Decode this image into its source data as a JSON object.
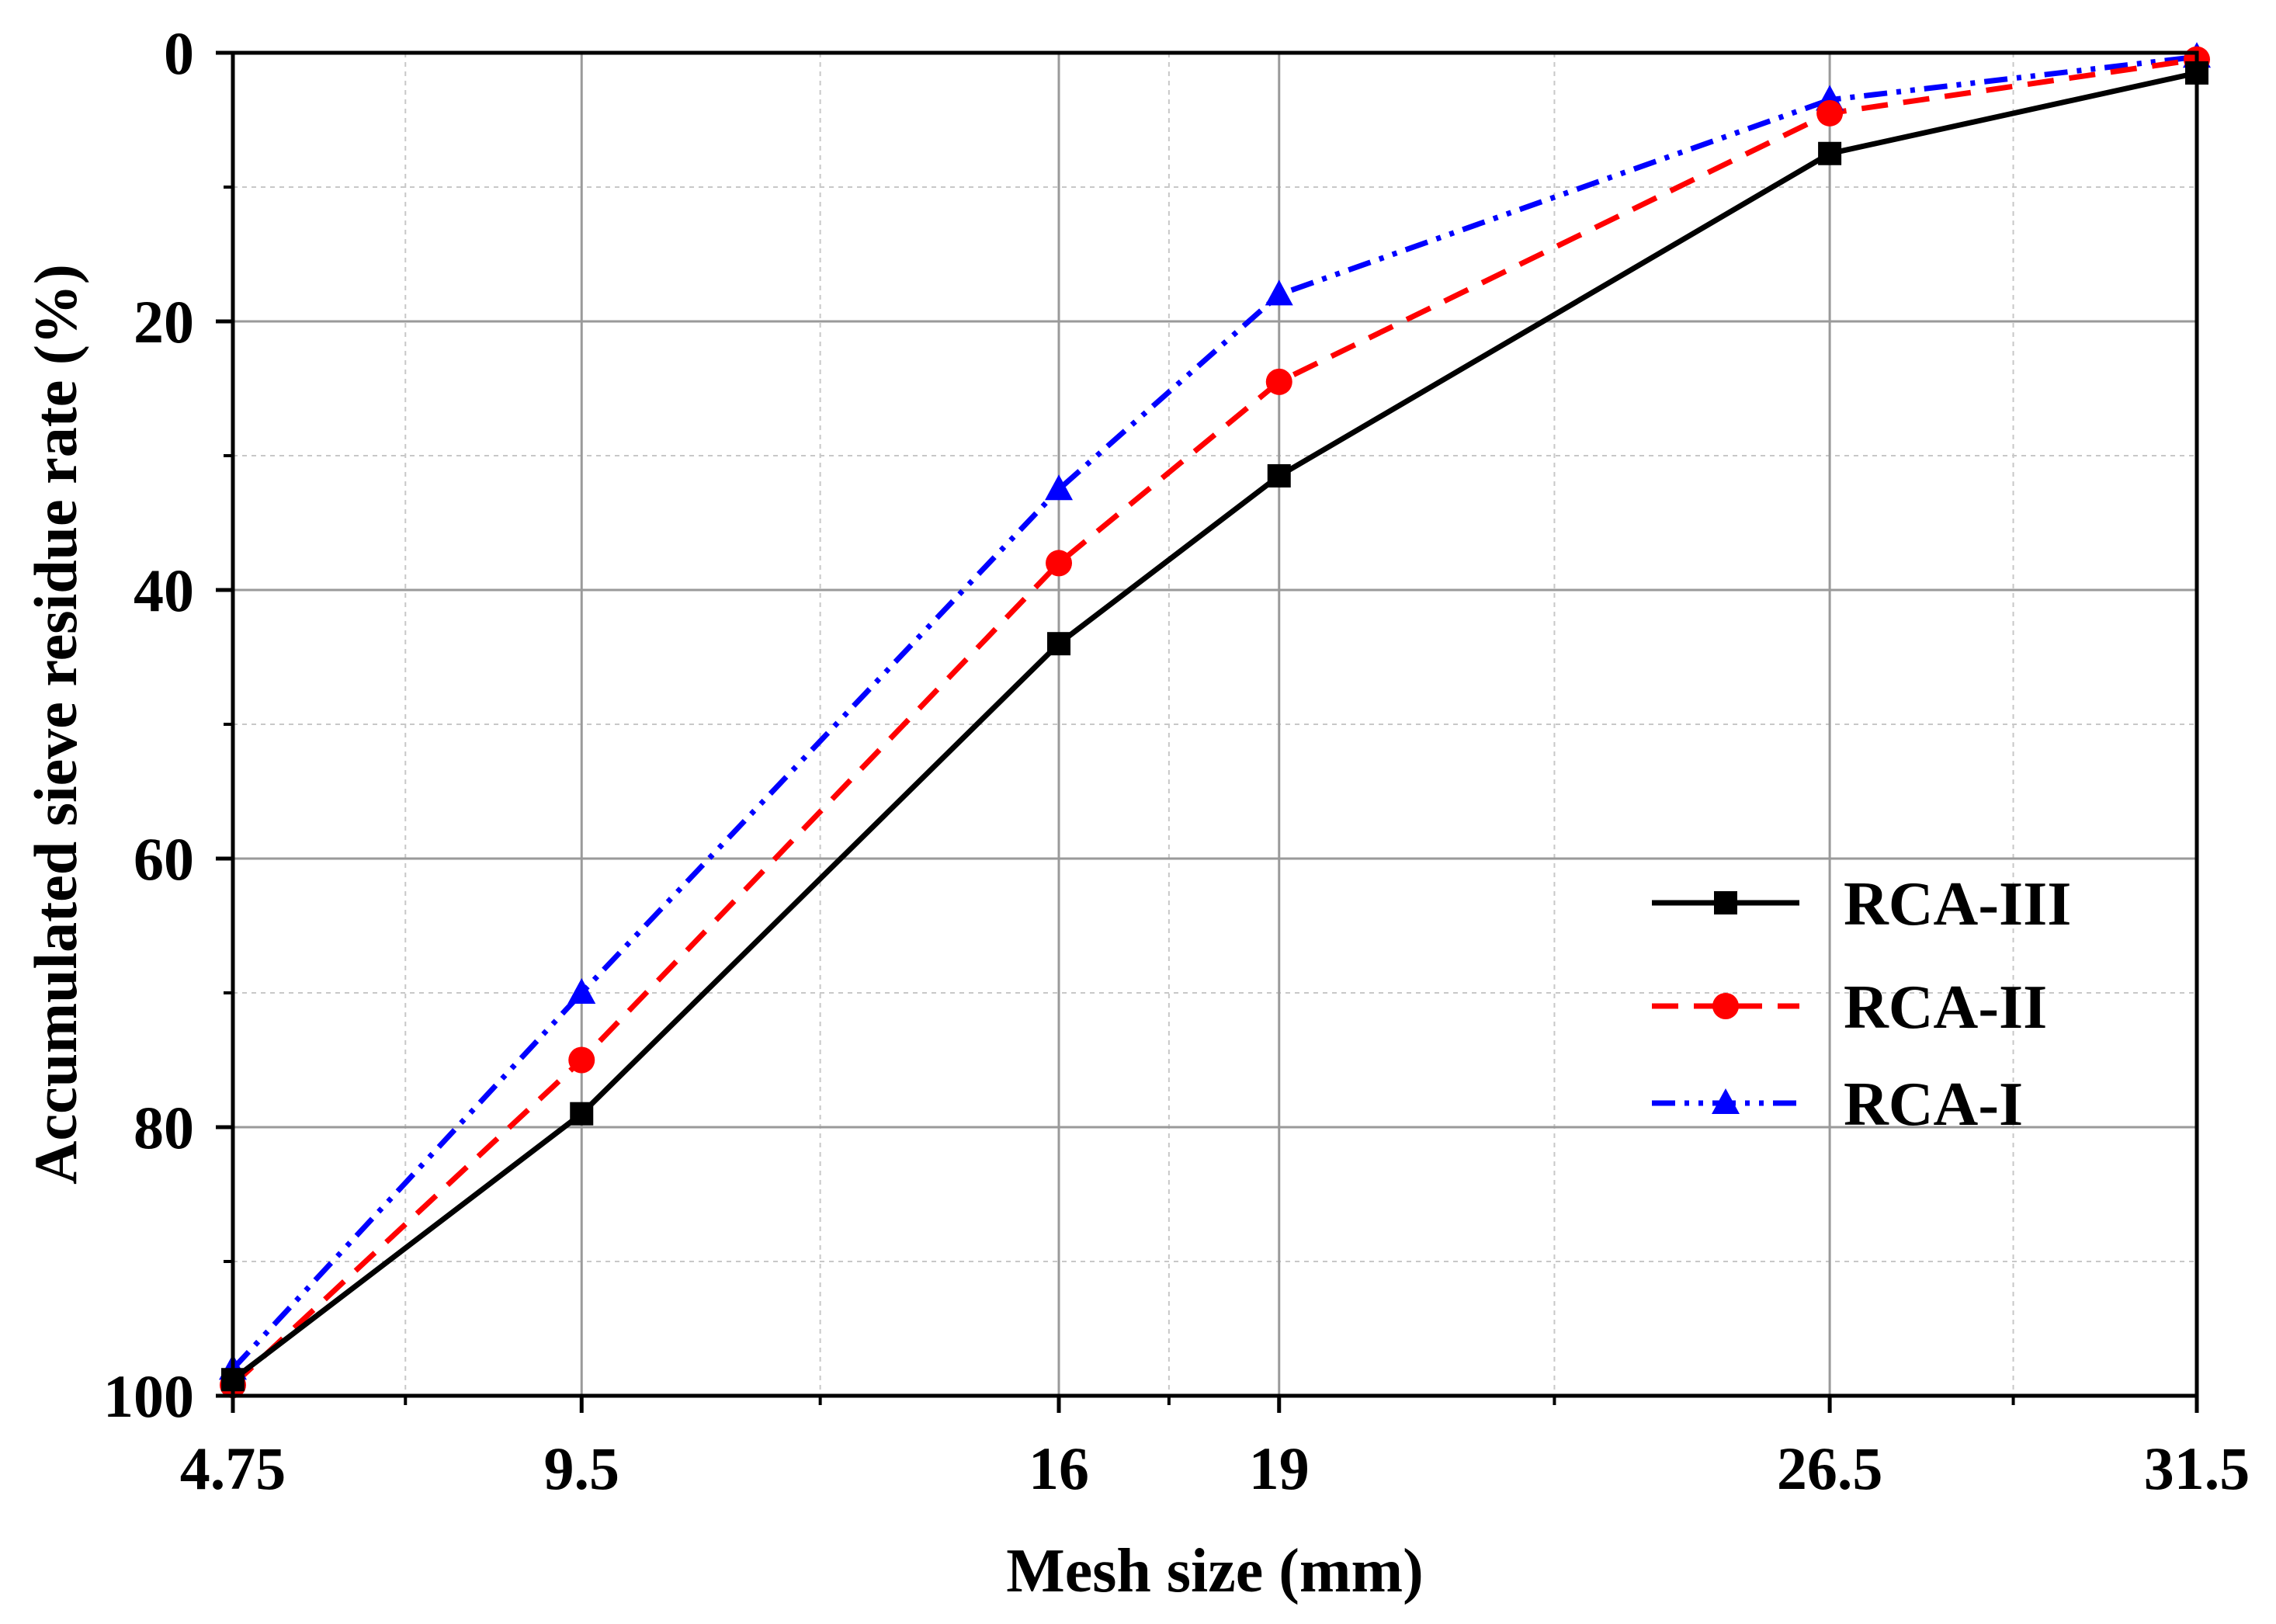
{
  "chart_data": {
    "type": "line",
    "title": "",
    "xlabel": "Mesh size (mm)",
    "ylabel": "Accumulated sieve residue rate (%)",
    "x": [
      4.75,
      9.5,
      16,
      19,
      26.5,
      31.5
    ],
    "x_tick_labels": [
      "4.75",
      "9.5",
      "16",
      "19",
      "26.5",
      "31.5"
    ],
    "xlim": [
      4.75,
      31.5
    ],
    "ylim": [
      0,
      100
    ],
    "y_inverted": true,
    "y_ticks": [
      0,
      20,
      40,
      60,
      80,
      100
    ],
    "y_tick_labels": [
      "0",
      "20",
      "40",
      "60",
      "80",
      "100"
    ],
    "y_minor_ticks": [
      10,
      30,
      50,
      70,
      90
    ],
    "x_minor_gridlines": [
      7.1,
      12.75,
      17.5,
      22.75,
      29.0
    ],
    "grid": true,
    "legend_position": "right-middle",
    "series": [
      {
        "name": "RCA-III",
        "values": [
          98.8,
          79,
          44,
          31.5,
          7.5,
          1.5
        ],
        "color": "#000000",
        "dash": "solid",
        "marker": "square"
      },
      {
        "name": "RCA-II",
        "values": [
          99.2,
          75,
          38,
          24.5,
          4.5,
          0.5
        ],
        "color": "#ff0000",
        "dash": "dashed",
        "marker": "circle"
      },
      {
        "name": "RCA-I",
        "values": [
          98,
          70,
          32.5,
          18,
          3.5,
          0.3
        ],
        "color": "#0000ff",
        "dash": "dash-dot-dot",
        "marker": "triangle"
      }
    ]
  }
}
